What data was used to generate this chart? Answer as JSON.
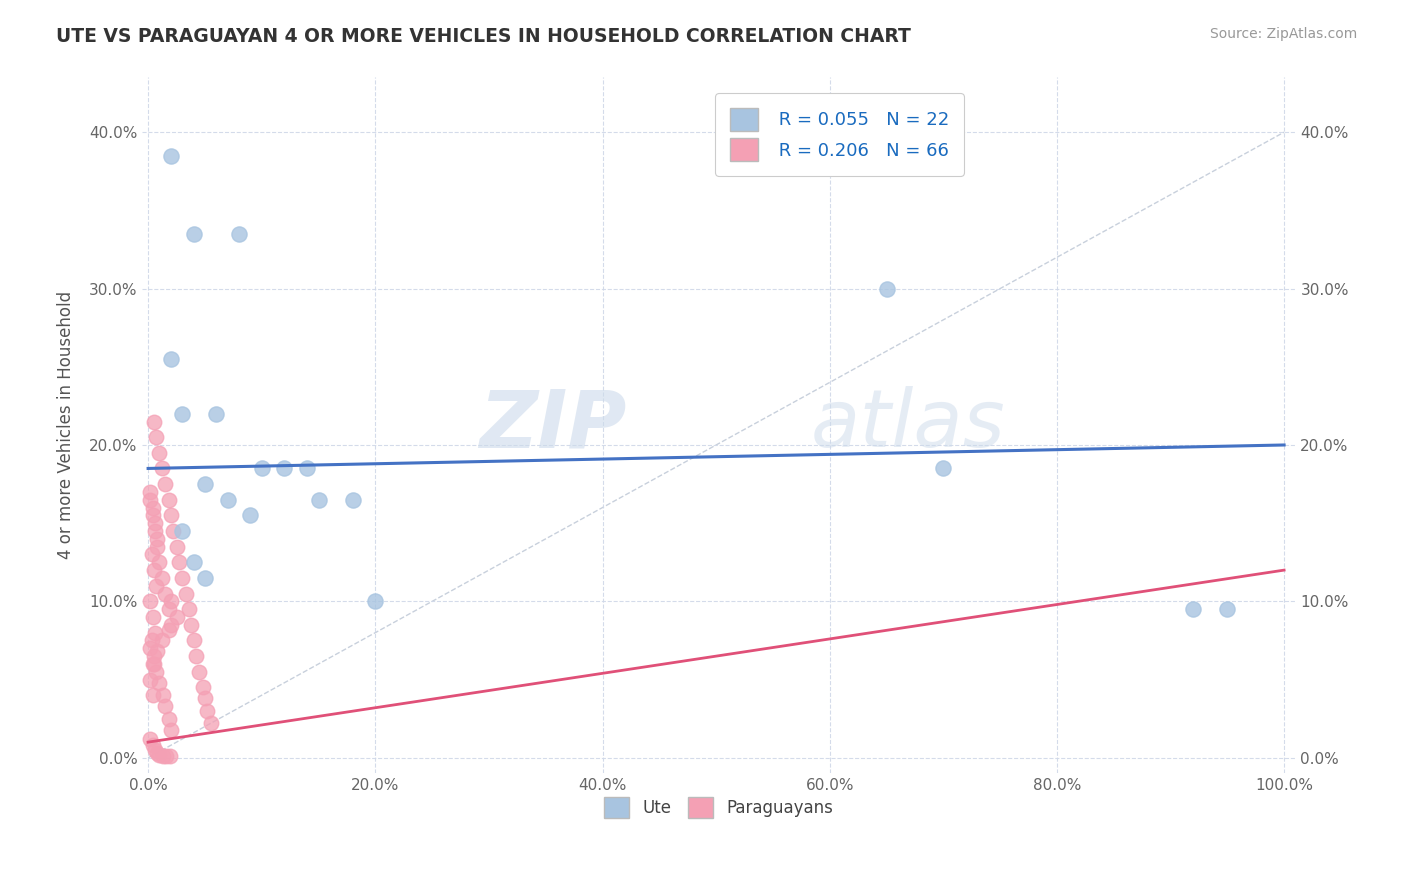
{
  "title": "UTE VS PARAGUAYAN 4 OR MORE VEHICLES IN HOUSEHOLD CORRELATION CHART",
  "source": "Source: ZipAtlas.com",
  "ylabel": "4 or more Vehicles in Household",
  "xlabel_ticks": [
    "0.0%",
    "20.0%",
    "40.0%",
    "60.0%",
    "80.0%",
    "100.0%"
  ],
  "ylabel_ticks": [
    "0.0%",
    "10.0%",
    "20.0%",
    "30.0%",
    "40.0%"
  ],
  "xlim": [
    -0.005,
    1.01
  ],
  "ylim": [
    -0.01,
    0.435
  ],
  "ute_R": 0.055,
  "ute_N": 22,
  "para_R": 0.206,
  "para_N": 66,
  "ute_color": "#a8c4e0",
  "para_color": "#f4a0b4",
  "trend_ute_color": "#4472c4",
  "trend_para_color": "#e05078",
  "diagonal_color": "#c8d0dc",
  "background_color": "#ffffff",
  "grid_color": "#d0d8e8",
  "watermark_zip": "ZIP",
  "watermark_atlas": "atlas",
  "ute_x": [
    0.02,
    0.04,
    0.08,
    0.02,
    0.03,
    0.06,
    0.1,
    0.14,
    0.05,
    0.07,
    0.09,
    0.03,
    0.04,
    0.05,
    0.12,
    0.65,
    0.7,
    0.92,
    0.95,
    0.2,
    0.15,
    0.18
  ],
  "ute_y": [
    0.385,
    0.335,
    0.335,
    0.255,
    0.22,
    0.22,
    0.185,
    0.185,
    0.175,
    0.165,
    0.155,
    0.145,
    0.125,
    0.115,
    0.185,
    0.3,
    0.185,
    0.095,
    0.095,
    0.1,
    0.165,
    0.165
  ],
  "para_x": [
    0.005,
    0.007,
    0.01,
    0.012,
    0.015,
    0.018,
    0.02,
    0.022,
    0.025,
    0.027,
    0.03,
    0.033,
    0.036,
    0.038,
    0.04,
    0.042,
    0.045,
    0.048,
    0.05,
    0.052,
    0.055,
    0.002,
    0.004,
    0.006,
    0.008,
    0.01,
    0.012,
    0.015,
    0.018,
    0.02,
    0.003,
    0.005,
    0.007,
    0.01,
    0.013,
    0.015,
    0.018,
    0.02,
    0.002,
    0.004,
    0.006,
    0.008,
    0.01,
    0.013,
    0.016,
    0.019,
    0.002,
    0.004,
    0.006,
    0.008,
    0.003,
    0.005,
    0.007,
    0.002,
    0.004,
    0.006,
    0.002,
    0.004,
    0.002,
    0.004,
    0.02,
    0.025,
    0.018,
    0.012,
    0.008,
    0.005
  ],
  "para_y": [
    0.215,
    0.205,
    0.195,
    0.185,
    0.175,
    0.165,
    0.155,
    0.145,
    0.135,
    0.125,
    0.115,
    0.105,
    0.095,
    0.085,
    0.075,
    0.065,
    0.055,
    0.045,
    0.038,
    0.03,
    0.022,
    0.165,
    0.155,
    0.145,
    0.135,
    0.125,
    0.115,
    0.105,
    0.095,
    0.085,
    0.075,
    0.065,
    0.055,
    0.048,
    0.04,
    0.033,
    0.025,
    0.018,
    0.012,
    0.008,
    0.005,
    0.003,
    0.002,
    0.001,
    0.001,
    0.001,
    0.17,
    0.16,
    0.15,
    0.14,
    0.13,
    0.12,
    0.11,
    0.1,
    0.09,
    0.08,
    0.07,
    0.06,
    0.05,
    0.04,
    0.1,
    0.09,
    0.082,
    0.075,
    0.068,
    0.06
  ]
}
